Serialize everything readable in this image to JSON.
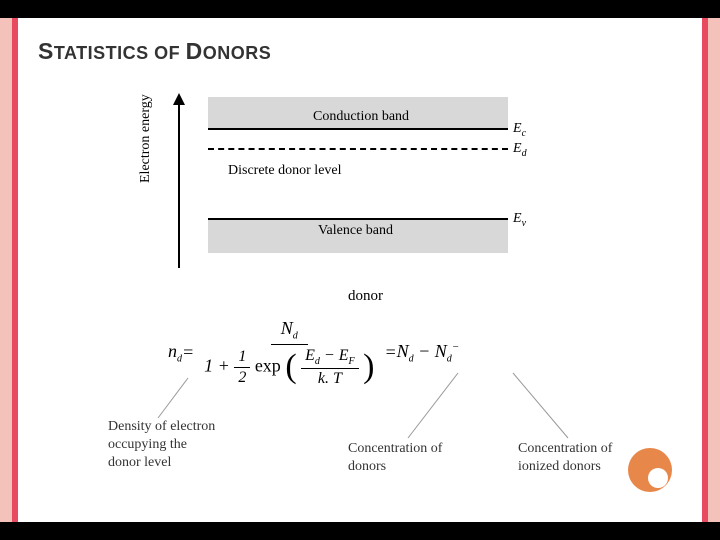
{
  "slide": {
    "title_caps": "S",
    "title_rest1": "TATISTICS OF ",
    "title_caps2": "D",
    "title_rest2": "ONORS"
  },
  "diagram": {
    "axis_label": "Electron energy",
    "conduction_label": "Conduction band",
    "donor_level_label": "Discrete donor level",
    "valence_label": "Valence band",
    "Ec": "E",
    "Ec_sub": "c",
    "Ed": "E",
    "Ed_sub": "d",
    "Ev": "E",
    "Ev_sub": "v",
    "donor_caption": "donor"
  },
  "formula": {
    "lhs": "n",
    "lhs_sub": "d",
    "eq": " = ",
    "Nd_num": "N",
    "Nd_num_sub": "d",
    "one": "1",
    "plus": " + ",
    "half_num": "1",
    "half_den": "2",
    "exp": " exp",
    "frac_top_a": "E",
    "frac_top_a_sub": "d",
    "minus": " − ",
    "frac_top_b": "E",
    "frac_top_b_sub": "F",
    "frac_bot": "k. T",
    "eq2": " = ",
    "rhs_a": "N",
    "rhs_a_sub": "d",
    "rhs_minus": " − ",
    "rhs_b": "N",
    "rhs_b_sub": "d",
    "rhs_b_sup": "−"
  },
  "annotations": {
    "left": "Density of electron\noccupying the\ndonor level",
    "mid": "Concentration of\ndonors",
    "right": "Concentration of\nionized donors"
  },
  "colors": {
    "accent": "#e84a5f",
    "accent_light": "#f5c1bb",
    "band_fill": "#d8d8d8",
    "circle": "#e8874a"
  }
}
